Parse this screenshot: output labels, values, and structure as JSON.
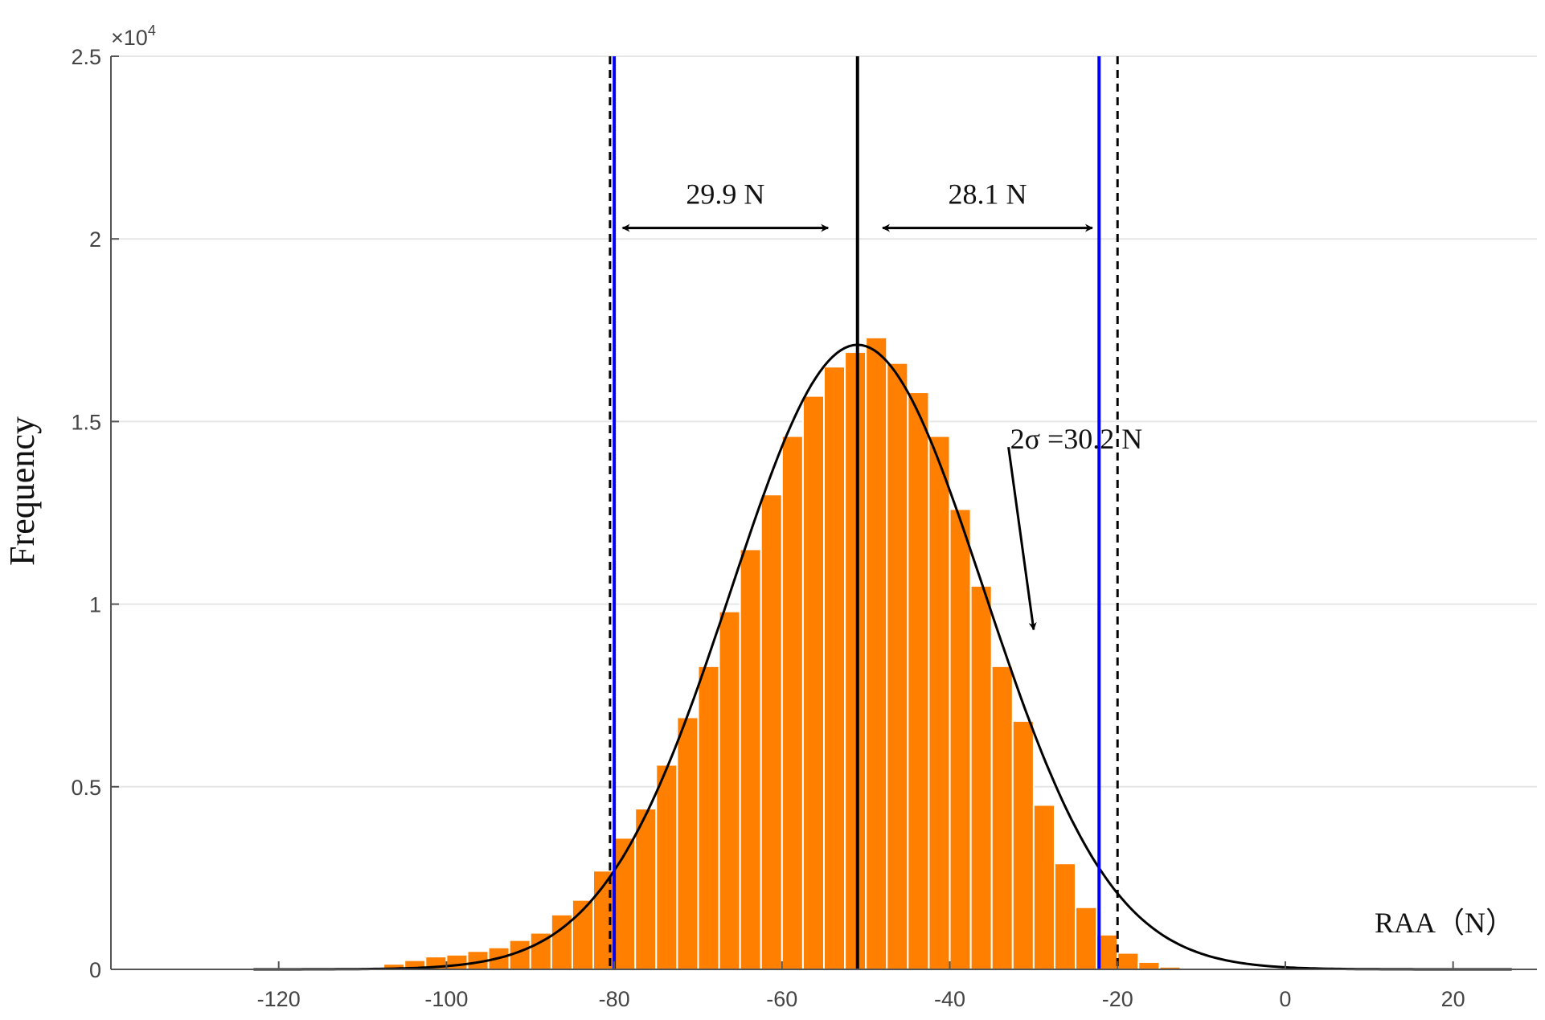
{
  "chart_data": {
    "type": "bar",
    "title": "",
    "xlabel": "RAA（N）",
    "ylabel": "Frequency",
    "y_exponent_label": "×10",
    "y_exponent_power": "4",
    "xlim": [
      -140,
      30
    ],
    "ylim": [
      0,
      25000
    ],
    "x_ticks": [
      -120,
      -100,
      -80,
      -60,
      -40,
      -20,
      0,
      20
    ],
    "x_tick_labels": [
      "-120",
      "-100",
      "-80",
      "-60",
      "-40",
      "-20",
      "0",
      "20"
    ],
    "y_ticks": [
      0,
      5000,
      10000,
      15000,
      20000,
      25000
    ],
    "y_tick_labels": [
      "0",
      "0.5",
      "1",
      "1.5",
      "2",
      "2.5"
    ],
    "grid": true,
    "legend": "none",
    "bar_width": 2.5,
    "bar_color": "#ff7f00",
    "histogram": {
      "bin_centers": [
        -106.25,
        -103.75,
        -101.25,
        -98.75,
        -96.25,
        -93.75,
        -91.25,
        -88.75,
        -86.25,
        -83.75,
        -81.25,
        -78.75,
        -76.25,
        -73.75,
        -71.25,
        -68.75,
        -66.25,
        -63.75,
        -61.25,
        -58.75,
        -56.25,
        -53.75,
        -51.25,
        -48.75,
        -46.25,
        -43.75,
        -41.25,
        -38.75,
        -36.25,
        -33.75,
        -31.25,
        -28.75,
        -26.25,
        -23.75,
        -21.25,
        -18.75,
        -16.25,
        -13.75,
        -11.25
      ],
      "values": [
        150,
        250,
        350,
        400,
        500,
        600,
        800,
        1000,
        1500,
        1900,
        2700,
        3600,
        4400,
        5600,
        6900,
        8300,
        9800,
        11500,
        13000,
        14600,
        15700,
        16500,
        16900,
        17300,
        16600,
        15800,
        14600,
        12600,
        10500,
        8300,
        6800,
        4500,
        2900,
        1700,
        950,
        450,
        200,
        70,
        20
      ]
    },
    "normal_fit": {
      "mean": -51,
      "sigma": 15.1,
      "peak": 17100,
      "x_range": [
        -123,
        27
      ],
      "color": "#000000"
    },
    "vertical_lines": [
      {
        "x": -51,
        "style": "solid",
        "color": "#000000"
      },
      {
        "x": -80,
        "style": "solid",
        "color": "#0000ff"
      },
      {
        "x": -22.2,
        "style": "solid",
        "color": "#0000ff"
      },
      {
        "x": -80.5,
        "style": "dashed",
        "color": "#000000"
      },
      {
        "x": -20,
        "style": "dashed",
        "color": "#000000"
      }
    ],
    "annotations": [
      {
        "text": "29.9 N"
      },
      {
        "text": "28.1 N"
      },
      {
        "text": "2σ =30.2 N"
      }
    ],
    "range_arrows": [
      {
        "x_from": -79,
        "x_to": -54.5,
        "y": 20300
      },
      {
        "x_from": -48,
        "x_to": -23,
        "y": 20300
      }
    ],
    "pointer_arrow": {
      "x_from": -33,
      "y_from": 14300,
      "x_to": -30,
      "y_to": 9300
    }
  }
}
